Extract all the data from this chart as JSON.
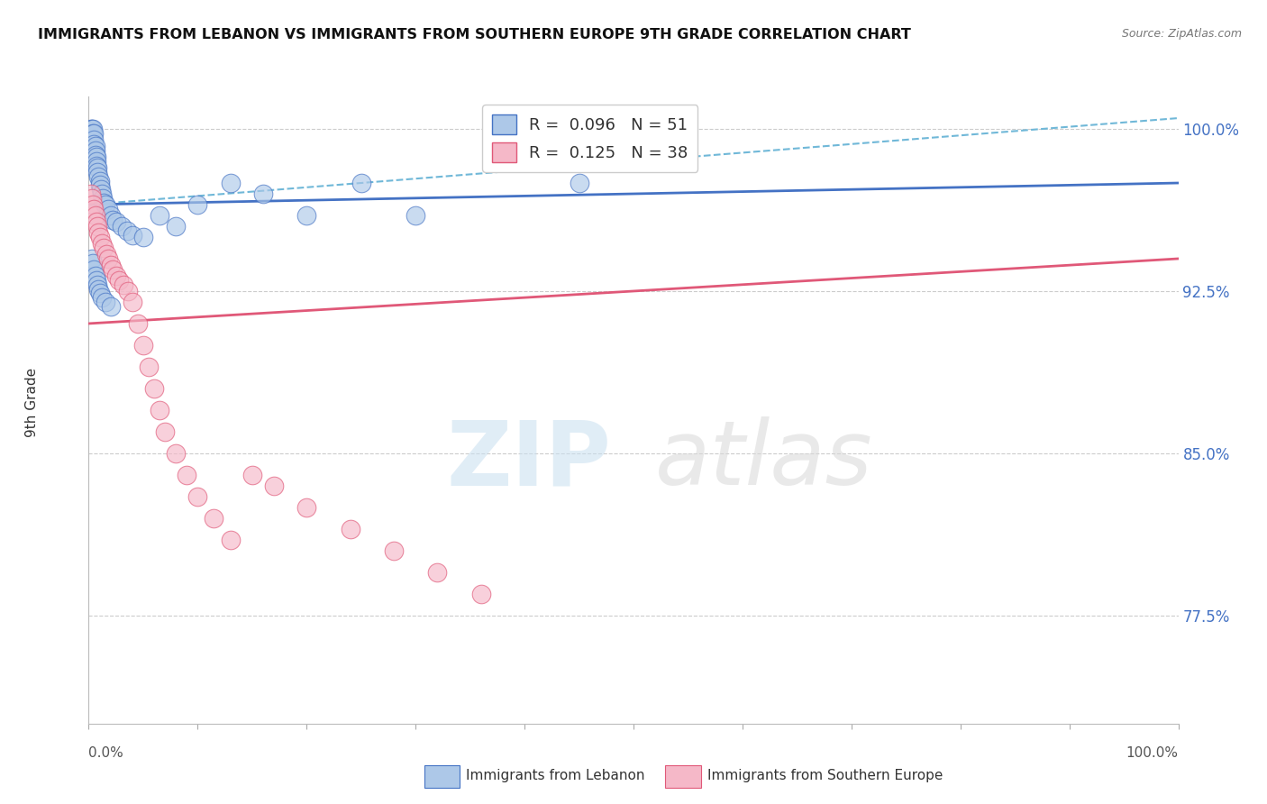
{
  "title": "IMMIGRANTS FROM LEBANON VS IMMIGRANTS FROM SOUTHERN EUROPE 9TH GRADE CORRELATION CHART",
  "source": "Source: ZipAtlas.com",
  "ylabel": "9th Grade",
  "xlim": [
    0.0,
    1.0
  ],
  "ylim": [
    0.725,
    1.015
  ],
  "yticks": [
    0.775,
    0.85,
    0.925,
    1.0
  ],
  "ytick_labels": [
    "77.5%",
    "85.0%",
    "92.5%",
    "100.0%"
  ],
  "legend1_label": "R =  0.096   N = 51",
  "legend2_label": "R =  0.125   N = 38",
  "legend1_face": "#adc8e8",
  "legend2_face": "#f5b8c8",
  "line1_color": "#4472C4",
  "line2_color": "#E05878",
  "dashed_line_color": "#70B8D8",
  "blue_scatter_x": [
    0.002,
    0.003,
    0.004,
    0.004,
    0.005,
    0.005,
    0.005,
    0.006,
    0.006,
    0.006,
    0.007,
    0.007,
    0.007,
    0.008,
    0.008,
    0.009,
    0.01,
    0.01,
    0.011,
    0.012,
    0.013,
    0.014,
    0.015,
    0.018,
    0.02,
    0.022,
    0.025,
    0.03,
    0.035,
    0.04,
    0.05,
    0.065,
    0.08,
    0.1,
    0.13,
    0.16,
    0.2,
    0.25,
    0.3,
    0.45,
    0.003,
    0.004,
    0.005,
    0.006,
    0.007,
    0.008,
    0.009,
    0.01,
    0.012,
    0.015,
    0.02
  ],
  "blue_scatter_y": [
    1.0,
    1.0,
    1.0,
    0.998,
    0.998,
    0.995,
    0.993,
    0.992,
    0.99,
    0.988,
    0.987,
    0.985,
    0.983,
    0.982,
    0.98,
    0.978,
    0.976,
    0.974,
    0.972,
    0.97,
    0.968,
    0.966,
    0.965,
    0.963,
    0.96,
    0.958,
    0.957,
    0.955,
    0.953,
    0.951,
    0.95,
    0.96,
    0.955,
    0.965,
    0.975,
    0.97,
    0.96,
    0.975,
    0.96,
    0.975,
    0.94,
    0.938,
    0.935,
    0.932,
    0.93,
    0.928,
    0.926,
    0.924,
    0.922,
    0.92,
    0.918
  ],
  "pink_scatter_x": [
    0.002,
    0.003,
    0.004,
    0.005,
    0.006,
    0.007,
    0.008,
    0.009,
    0.01,
    0.012,
    0.014,
    0.016,
    0.018,
    0.02,
    0.022,
    0.025,
    0.028,
    0.032,
    0.036,
    0.04,
    0.045,
    0.05,
    0.055,
    0.06,
    0.065,
    0.07,
    0.08,
    0.09,
    0.1,
    0.115,
    0.13,
    0.15,
    0.17,
    0.2,
    0.24,
    0.28,
    0.32,
    0.36
  ],
  "pink_scatter_y": [
    0.97,
    0.968,
    0.965,
    0.963,
    0.96,
    0.957,
    0.955,
    0.952,
    0.95,
    0.947,
    0.945,
    0.942,
    0.94,
    0.937,
    0.935,
    0.932,
    0.93,
    0.928,
    0.925,
    0.92,
    0.91,
    0.9,
    0.89,
    0.88,
    0.87,
    0.86,
    0.85,
    0.84,
    0.83,
    0.82,
    0.81,
    0.84,
    0.835,
    0.825,
    0.815,
    0.805,
    0.795,
    0.785
  ],
  "blue_line_x": [
    0.0,
    1.0
  ],
  "blue_line_y": [
    0.965,
    0.975
  ],
  "pink_line_x": [
    0.0,
    1.0
  ],
  "pink_line_y": [
    0.91,
    0.94
  ],
  "dashed_line_x": [
    0.0,
    1.0
  ],
  "dashed_line_y": [
    0.965,
    1.005
  ],
  "xtick_positions": [
    0.0,
    0.1,
    0.2,
    0.3,
    0.4,
    0.5,
    0.6,
    0.7,
    0.8,
    0.9,
    1.0
  ],
  "watermark_zip": "ZIP",
  "watermark_atlas": "atlas",
  "background_color": "#ffffff",
  "grid_color": "#cccccc",
  "bottom_legend_blue_label": "Immigrants from Lebanon",
  "bottom_legend_pink_label": "Immigrants from Southern Europe"
}
